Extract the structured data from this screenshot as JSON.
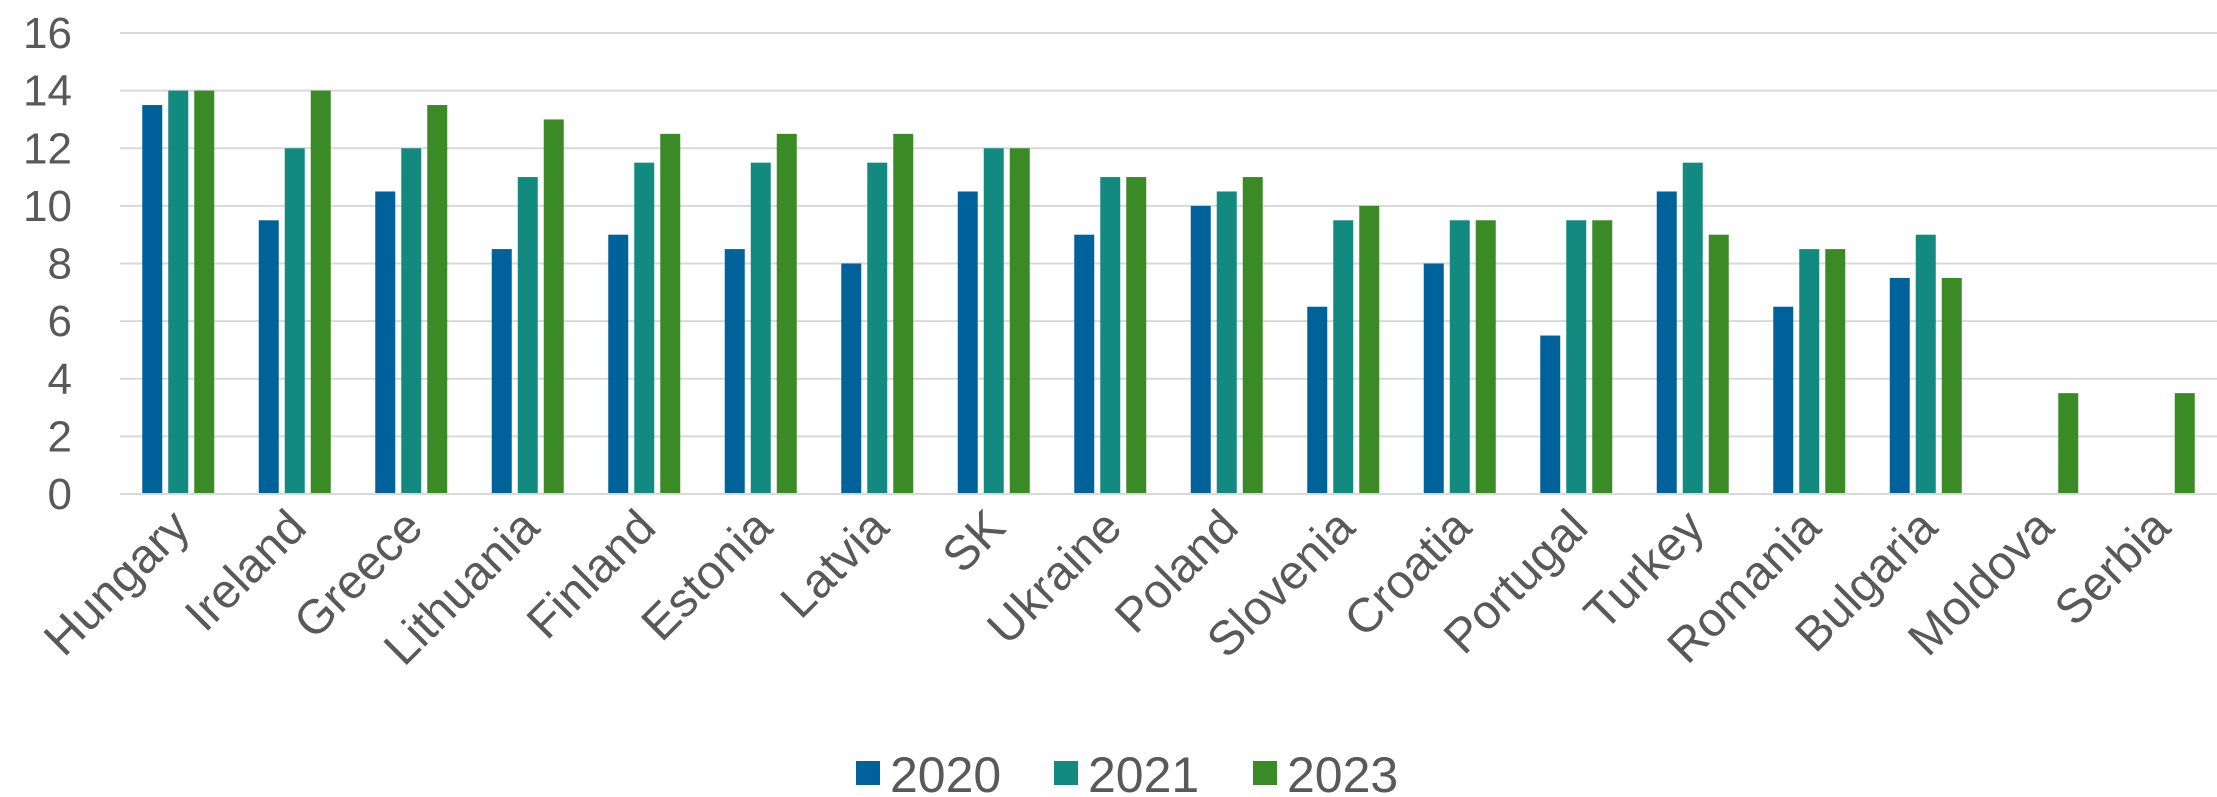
{
  "chart_data": {
    "type": "bar",
    "title": "",
    "xlabel": "",
    "ylabel": "",
    "ylim": [
      0,
      16
    ],
    "y_ticks": [
      0,
      2,
      4,
      6,
      8,
      10,
      12,
      14,
      16
    ],
    "grid": true,
    "legend_position": "bottom",
    "categories": [
      "Hungary",
      "Ireland",
      "Greece",
      "Lithuania",
      "Finland",
      "Estonia",
      "Latvia",
      "SK",
      "Ukraine",
      "Poland",
      "Slovenia",
      "Croatia",
      "Portugal",
      "Turkey",
      "Romania",
      "Bulgaria",
      "Moldova",
      "Serbia"
    ],
    "series": [
      {
        "name": "2020",
        "color": "#00629B",
        "values": [
          13.5,
          9.5,
          10.5,
          8.5,
          9,
          8.5,
          8,
          10.5,
          9,
          10,
          6.5,
          8,
          5.5,
          10.5,
          6.5,
          7.5,
          null,
          null
        ]
      },
      {
        "name": "2021",
        "color": "#138A80",
        "values": [
          14,
          12,
          12,
          11,
          11.5,
          11.5,
          11.5,
          12,
          11,
          10.5,
          9.5,
          9.5,
          9.5,
          11.5,
          8.5,
          9,
          null,
          null
        ]
      },
      {
        "name": "2023",
        "color": "#3A8A26",
        "values": [
          14,
          14,
          13.5,
          13,
          12.5,
          12.5,
          12.5,
          12,
          11,
          11,
          10,
          9.5,
          9.5,
          9,
          8.5,
          7.5,
          3.5,
          3.5
        ]
      }
    ]
  }
}
